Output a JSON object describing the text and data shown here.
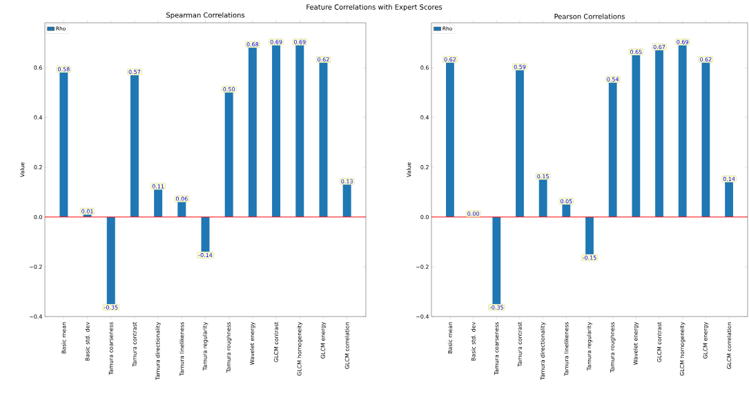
{
  "chart_data": [
    {
      "type": "bar",
      "title": "Spearman Correlations",
      "ylabel": "Value",
      "annotations": [
        "Feature Correlations with Expert Scores"
      ],
      "categories": [
        "Basic mean",
        "Basic std. dev",
        "Tamura coarseness",
        "Tamura contrast",
        "Tamura directionality",
        "Tamura linelikeness",
        "Tamura regularity",
        "Tamura roughness",
        "Wavelet energy",
        "GLCM contrast",
        "GLCM homogeneity",
        "GLCM energy",
        "GLCM correlation"
      ],
      "series": [
        {
          "name": "Rho",
          "color": "#1f77b4",
          "values": [
            0.58,
            0.01,
            -0.35,
            0.57,
            0.11,
            0.06,
            -0.14,
            0.5,
            0.68,
            0.69,
            0.69,
            0.62,
            0.13
          ],
          "value_labels": [
            "0.58",
            "0.01",
            "-0.35",
            "0.57",
            "0.11",
            "0.06",
            "-0.14",
            "0.50",
            "0.68",
            "0.69",
            "0.69",
            "0.62",
            "0.13"
          ]
        }
      ],
      "ylim": [
        -0.4,
        0.78
      ],
      "yticks": [
        {
          "value": -0.4,
          "label": "−0.4"
        },
        {
          "value": -0.2,
          "label": "−0.2"
        },
        {
          "value": 0,
          "label": "0.0"
        },
        {
          "value": 0.2,
          "label": "0.2"
        },
        {
          "value": 0.4,
          "label": "0.4"
        },
        {
          "value": 0.6,
          "label": "0.6"
        }
      ],
      "ref_lines": [
        {
          "axis": "y",
          "value": 0,
          "color": "#ff0000"
        }
      ],
      "legend": "top left"
    },
    {
      "type": "bar",
      "title": "Pearson Correlations",
      "ylabel": "Value",
      "categories": [
        "Basic mean",
        "Basic std. dev",
        "Tamura coarseness",
        "Tamura contrast",
        "Tamura directionality",
        "Tamura linelikeness",
        "Tamura regularity",
        "Tamura roughness",
        "Wavelet energy",
        "GLCM contrast",
        "GLCM homogeneity",
        "GLCM energy",
        "GLCM correlation"
      ],
      "series": [
        {
          "name": "Rho",
          "color": "#1f77b4",
          "values": [
            0.62,
            0.0,
            -0.35,
            0.59,
            0.15,
            0.05,
            -0.15,
            0.54,
            0.65,
            0.67,
            0.69,
            0.62,
            0.14
          ],
          "value_labels": [
            "0.62",
            "0.00",
            "-0.35",
            "0.59",
            "0.15",
            "0.05",
            "-0.15",
            "0.54",
            "0.65",
            "0.67",
            "0.69",
            "0.62",
            "0.14"
          ]
        }
      ],
      "ylim": [
        -0.4,
        0.78
      ],
      "yticks": [
        {
          "value": -0.4,
          "label": "−0.4"
        },
        {
          "value": -0.2,
          "label": "−0.2"
        },
        {
          "value": 0,
          "label": "0.0"
        },
        {
          "value": 0.2,
          "label": "0.2"
        },
        {
          "value": 0.4,
          "label": "0.4"
        },
        {
          "value": 0.6,
          "label": "0.6"
        }
      ],
      "ref_lines": [
        {
          "axis": "y",
          "value": 0,
          "color": "#ff0000"
        }
      ],
      "legend": "top left"
    }
  ]
}
